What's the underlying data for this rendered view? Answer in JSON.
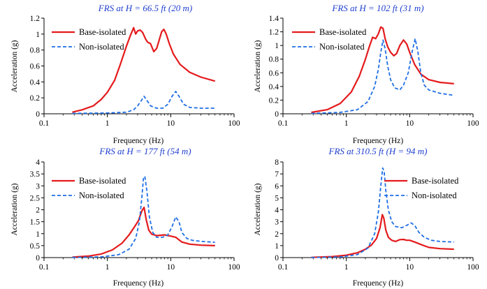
{
  "colors": {
    "base": "#e41a1c",
    "non": "#1f6fe6",
    "title": "#1f3fcf",
    "axis": "#000000"
  },
  "chart_data": [
    {
      "type": "line",
      "title": "FRS at H = 66.5 ft (20 m)",
      "xlabel": "Frequency (Hz)",
      "ylabel": "Acceleration (g)",
      "xscale": "log",
      "xlim": [
        0.1,
        100
      ],
      "ylim": [
        0,
        1.2
      ],
      "yticks": [
        "0",
        "0.2",
        "0.4",
        "0.6",
        "0.8",
        "1",
        "1.2"
      ],
      "xticks": [
        "0.1",
        "1",
        "10",
        "100"
      ],
      "legend": "top-left",
      "series": [
        {
          "name": "Base-isolated",
          "style": "solid",
          "x": [
            0.28,
            0.4,
            0.6,
            0.8,
            1,
            1.3,
            1.6,
            2,
            2.3,
            2.6,
            2.8,
            3,
            3.3,
            3.6,
            4,
            4.3,
            4.8,
            5.4,
            6,
            6.6,
            7.2,
            7.8,
            8.5,
            9.5,
            11,
            14,
            20,
            30,
            50
          ],
          "y": [
            0.02,
            0.05,
            0.1,
            0.18,
            0.27,
            0.42,
            0.62,
            0.85,
            0.98,
            1.08,
            1.0,
            1.04,
            1.05,
            1.02,
            0.94,
            0.9,
            0.88,
            0.78,
            0.82,
            0.93,
            1.03,
            1.06,
            1.0,
            0.88,
            0.75,
            0.62,
            0.52,
            0.46,
            0.41
          ]
        },
        {
          "name": "Non-isolated",
          "style": "dashed",
          "x": [
            0.28,
            1,
            2,
            2.6,
            3,
            3.4,
            3.8,
            4.2,
            4.8,
            6,
            7.5,
            9,
            10.5,
            12,
            13.5,
            16,
            20,
            30,
            50
          ],
          "y": [
            0.005,
            0.01,
            0.02,
            0.05,
            0.1,
            0.16,
            0.22,
            0.17,
            0.1,
            0.07,
            0.07,
            0.12,
            0.22,
            0.28,
            0.22,
            0.12,
            0.08,
            0.07,
            0.07
          ]
        }
      ]
    },
    {
      "type": "line",
      "title": "FRS at H = 102 ft (31 m)",
      "xlabel": "Frequency (Hz)",
      "ylabel": "Acceleration (g)",
      "xscale": "log",
      "xlim": [
        0.1,
        100
      ],
      "ylim": [
        0,
        1.4
      ],
      "yticks": [
        "0",
        "0.2",
        "0.4",
        "0.6",
        "0.8",
        "1",
        "1.2",
        "1.4"
      ],
      "xticks": [
        "0.1",
        "1",
        "10",
        "100"
      ],
      "legend": "top-left",
      "series": [
        {
          "name": "Base-isolated",
          "style": "solid",
          "x": [
            0.28,
            0.5,
            0.8,
            1.2,
            1.6,
            2,
            2.3,
            2.6,
            2.9,
            3.2,
            3.5,
            3.8,
            4.1,
            4.5,
            5,
            5.6,
            6.2,
            7,
            8,
            9,
            10,
            12,
            15,
            20,
            30,
            50
          ],
          "y": [
            0.02,
            0.06,
            0.15,
            0.32,
            0.55,
            0.8,
            0.98,
            1.12,
            1.1,
            1.17,
            1.27,
            1.25,
            1.1,
            0.98,
            0.9,
            0.85,
            0.88,
            1.0,
            1.08,
            1.02,
            0.9,
            0.72,
            0.58,
            0.5,
            0.46,
            0.44
          ]
        },
        {
          "name": "Non-isolated",
          "style": "dashed",
          "x": [
            0.28,
            0.8,
            1.5,
            2.2,
            2.8,
            3.2,
            3.5,
            3.8,
            4.1,
            4.5,
            5,
            5.8,
            7,
            8,
            9.5,
            11,
            12.2,
            13.5,
            15,
            17,
            20,
            30,
            50
          ],
          "y": [
            0.005,
            0.02,
            0.06,
            0.18,
            0.4,
            0.65,
            0.9,
            1.08,
            0.95,
            0.7,
            0.5,
            0.38,
            0.35,
            0.42,
            0.6,
            0.92,
            1.1,
            0.9,
            0.6,
            0.42,
            0.35,
            0.3,
            0.27
          ]
        }
      ]
    },
    {
      "type": "line",
      "title": "FRS at H = 177 ft (54 m)",
      "xlabel": "Frequency (Hz)",
      "ylabel": "Acceleration (g)",
      "xscale": "log",
      "xlim": [
        0.1,
        100
      ],
      "ylim": [
        0,
        4
      ],
      "yticks": [
        "0",
        "0.5",
        "1",
        "1.5",
        "2",
        "2.5",
        "3",
        "3.5",
        "4"
      ],
      "xticks": [
        "0.1",
        "1",
        "10",
        "100"
      ],
      "legend": "top-left",
      "series": [
        {
          "name": "Base-isolated",
          "style": "solid",
          "x": [
            0.28,
            0.5,
            0.8,
            1.2,
            1.7,
            2.2,
            2.7,
            3.1,
            3.5,
            3.8,
            4.1,
            4.5,
            5,
            6,
            8,
            10,
            12,
            15,
            20,
            30,
            50
          ],
          "y": [
            0.02,
            0.06,
            0.15,
            0.32,
            0.6,
            0.95,
            1.3,
            1.55,
            1.95,
            2.1,
            1.6,
            1.15,
            0.98,
            0.92,
            0.95,
            0.9,
            0.85,
            0.65,
            0.56,
            0.52,
            0.5
          ]
        },
        {
          "name": "Non-isolated",
          "style": "dashed",
          "x": [
            0.28,
            0.8,
            1.5,
            2.2,
            2.8,
            3.2,
            3.5,
            3.7,
            3.9,
            4.2,
            4.6,
            5.2,
            6,
            7.5,
            9,
            10.5,
            12,
            13.5,
            15,
            18,
            22,
            30,
            50
          ],
          "y": [
            0.005,
            0.03,
            0.12,
            0.35,
            0.8,
            1.5,
            2.5,
            3.3,
            3.4,
            2.8,
            1.7,
            1.05,
            0.85,
            0.85,
            0.95,
            1.3,
            1.7,
            1.5,
            1.05,
            0.8,
            0.72,
            0.68,
            0.64
          ]
        }
      ]
    },
    {
      "type": "line",
      "title": "FRS at 310.5 ft (H = 94 m)",
      "xlabel": "Frequency (Hz)",
      "ylabel": "Acceleration (g)",
      "xscale": "log",
      "xlim": [
        0.1,
        100
      ],
      "ylim": [
        0,
        8
      ],
      "yticks": [
        "0",
        "1",
        "2",
        "3",
        "4",
        "5",
        "6",
        "7",
        "8"
      ],
      "xticks": [
        "0.1",
        "1",
        "10",
        "100"
      ],
      "legend": "top-right",
      "series": [
        {
          "name": "Base-isolated",
          "style": "solid",
          "x": [
            0.28,
            0.6,
            1,
            1.5,
            2,
            2.5,
            3,
            3.4,
            3.7,
            3.9,
            4.2,
            4.6,
            5.2,
            6,
            7,
            8,
            9,
            10,
            12,
            15,
            20,
            30,
            50
          ],
          "y": [
            0.02,
            0.08,
            0.2,
            0.4,
            0.7,
            1.05,
            1.6,
            2.5,
            3.6,
            3.3,
            2.3,
            1.7,
            1.45,
            1.35,
            1.5,
            1.52,
            1.45,
            1.45,
            1.3,
            1.1,
            0.85,
            0.75,
            0.7
          ]
        },
        {
          "name": "Non-isolated",
          "style": "dashed",
          "x": [
            0.28,
            0.8,
            1.5,
            2.2,
            2.8,
            3.2,
            3.5,
            3.75,
            3.95,
            4.2,
            4.6,
            5.2,
            6,
            7.5,
            9,
            10.5,
            12,
            14,
            17,
            22,
            30,
            50
          ],
          "y": [
            0.005,
            0.05,
            0.25,
            0.8,
            2.0,
            3.8,
            6.0,
            7.5,
            7.2,
            5.6,
            4.0,
            3.0,
            2.6,
            2.5,
            2.7,
            2.9,
            2.7,
            2.1,
            1.7,
            1.45,
            1.35,
            1.3
          ]
        }
      ]
    }
  ]
}
